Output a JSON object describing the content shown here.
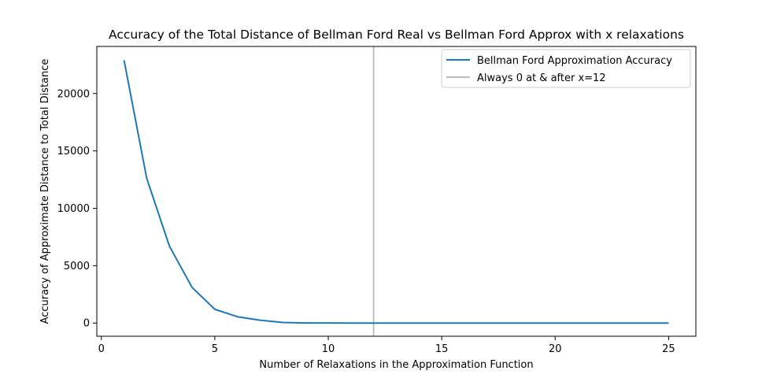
{
  "chart_data": {
    "type": "line",
    "title": "Accuracy of the Total Distance of Bellman Ford Real vs Bellman Ford Approx with x relaxations",
    "xlabel": "Number of Relaxations in the Approximation Function",
    "ylabel": "Accuracy of Approximate Distance to Total Distance",
    "xlim": [
      -0.2,
      26.2
    ],
    "ylim": [
      -1150,
      24100
    ],
    "xticks": [
      0,
      5,
      10,
      15,
      20,
      25
    ],
    "yticks": [
      0,
      5000,
      10000,
      15000,
      20000
    ],
    "grid": false,
    "legend_position": "top-right",
    "series": [
      {
        "name": "Bellman Ford Approximation Accuracy",
        "color": "#1f77b4",
        "x": [
          1,
          2,
          3,
          4,
          5,
          6,
          7,
          8,
          9,
          10,
          11,
          12,
          13,
          14,
          15,
          16,
          17,
          18,
          19,
          20,
          21,
          22,
          23,
          24,
          25
        ],
        "values": [
          22900,
          12600,
          6700,
          3100,
          1200,
          550,
          250,
          50,
          10,
          5,
          2,
          0,
          0,
          0,
          0,
          0,
          0,
          0,
          0,
          0,
          0,
          0,
          0,
          0,
          0
        ]
      }
    ],
    "annotations": [
      {
        "type": "vline",
        "x": 12,
        "color": "#bbbbbb",
        "label": "Always 0 at & after x=12"
      }
    ]
  }
}
